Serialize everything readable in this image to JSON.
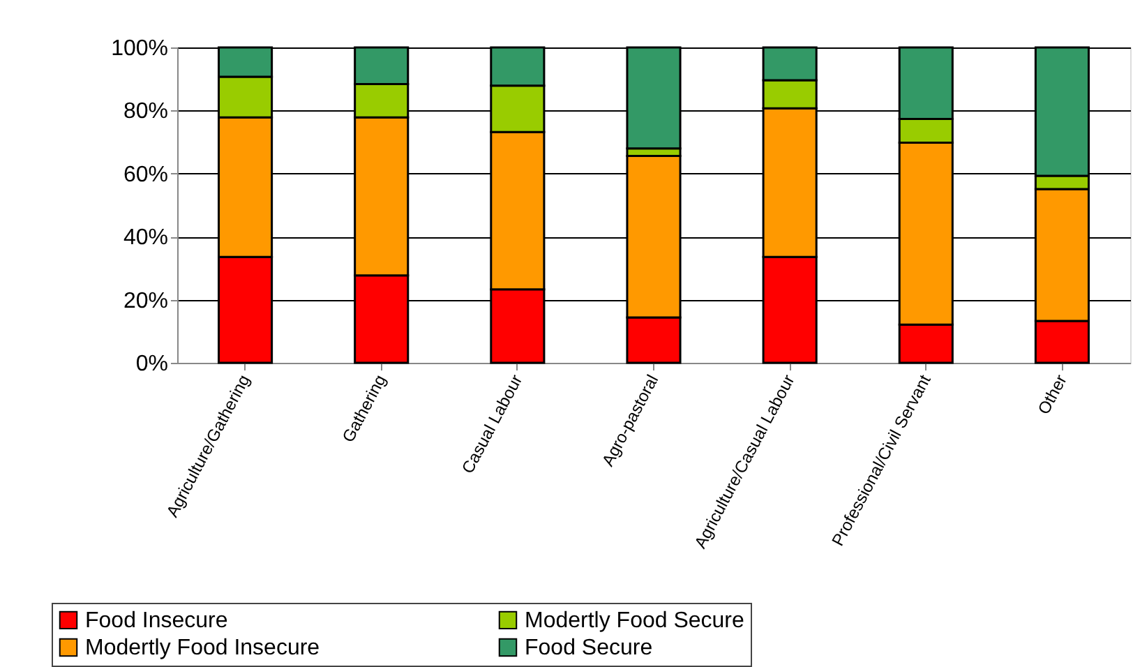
{
  "chart_data": {
    "type": "bar",
    "stacked": true,
    "categories": [
      "Agriculture/Gathering",
      "Gathering",
      "Casual Labour",
      "Agro-pastoral",
      "Agriculture/Casual Labour",
      "Professional/Civil Servant",
      "Other"
    ],
    "series": [
      {
        "name": "Food Insecure",
        "color": "#ff0000",
        "values": [
          33.6,
          27.7,
          23.3,
          14.4,
          33.6,
          12.1,
          13.3
        ]
      },
      {
        "name": "Modertly Food Insecure",
        "color": "#ff9900",
        "values": [
          44.2,
          50.1,
          49.9,
          51.2,
          47.1,
          57.7,
          41.8
        ]
      },
      {
        "name": "Modertly Food Secure",
        "color": "#99cc00",
        "values": [
          12.9,
          10.6,
          14.7,
          2.4,
          8.9,
          7.5,
          4.2
        ]
      },
      {
        "name": "Food Secure",
        "color": "#339966",
        "values": [
          9.3,
          11.6,
          12.1,
          32.0,
          10.4,
          22.7,
          40.7
        ]
      }
    ],
    "ylim": [
      0,
      100
    ],
    "yticks": [
      {
        "value": 0,
        "label": "0%"
      },
      {
        "value": 20,
        "label": "20%"
      },
      {
        "value": 40,
        "label": "40%"
      },
      {
        "value": 60,
        "label": "60%"
      },
      {
        "value": 80,
        "label": "80%"
      },
      {
        "value": 100,
        "label": "100%"
      }
    ],
    "grid": "y",
    "legend": "bottom"
  }
}
